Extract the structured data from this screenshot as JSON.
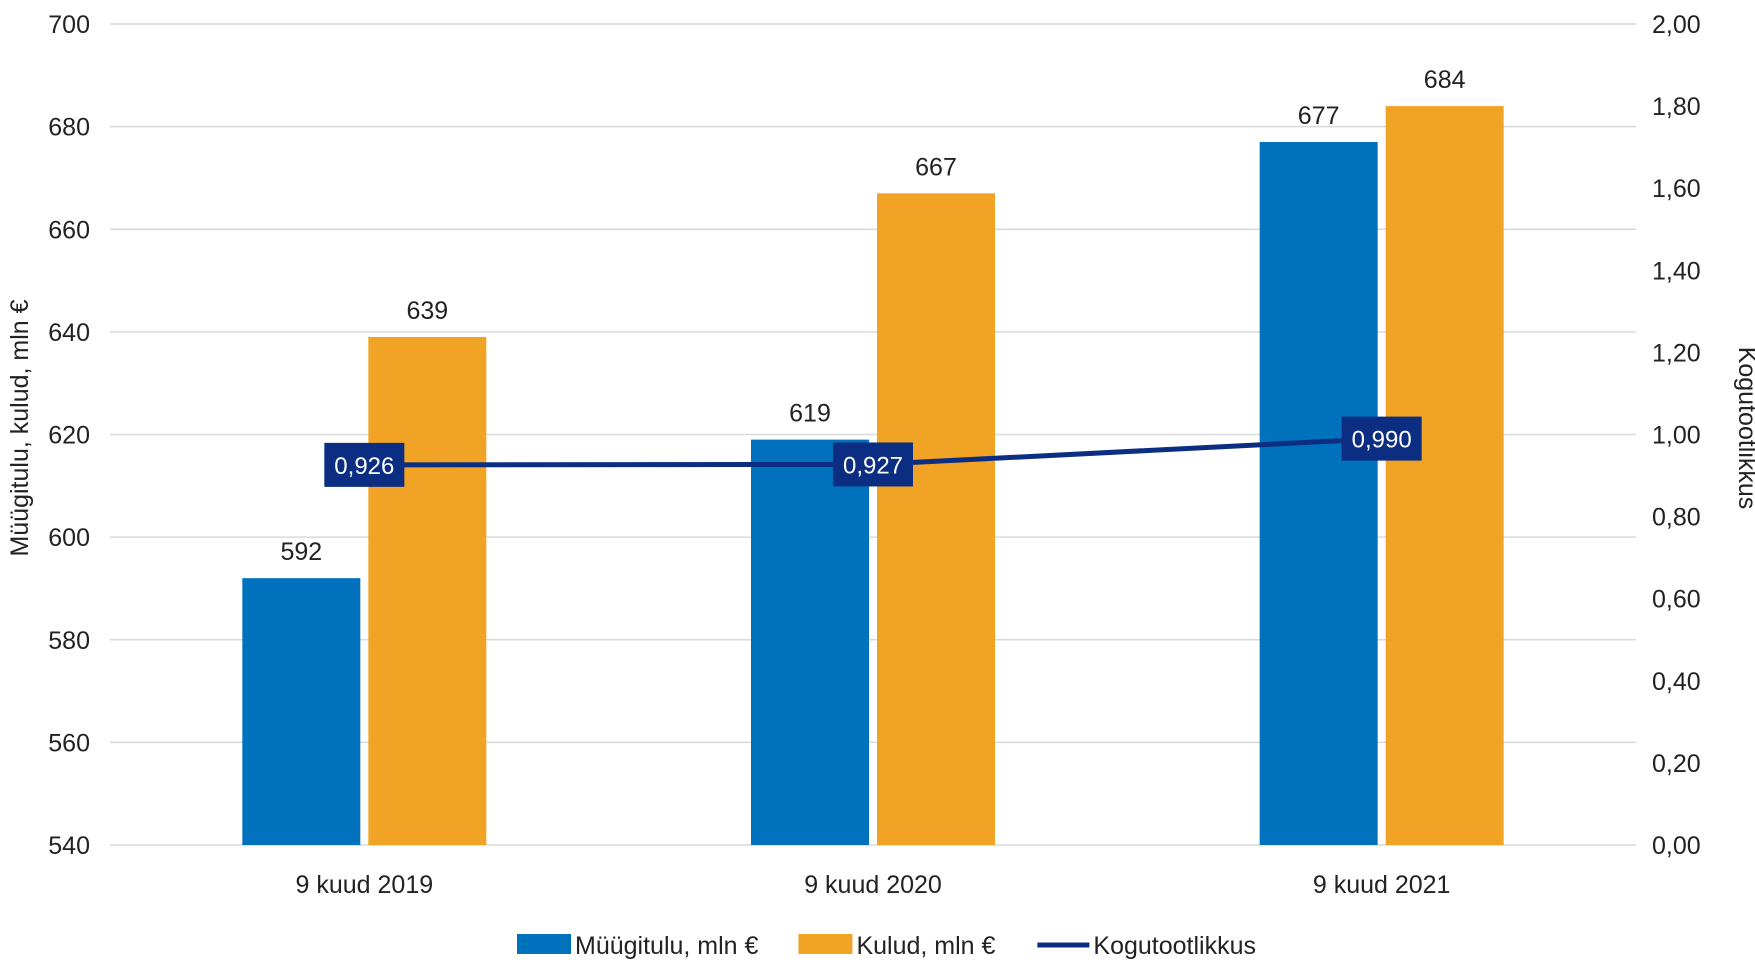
{
  "chart_data": {
    "type": "bar",
    "categories": [
      "9 kuud 2019",
      "9 kuud 2020",
      "9 kuud 2021"
    ],
    "series": [
      {
        "name": "Müügitulu, mln €",
        "type": "bar",
        "axis": "left",
        "values": [
          592,
          619,
          677
        ],
        "labels": [
          "592",
          "619",
          "677"
        ],
        "color": "#0071BC"
      },
      {
        "name": "Kulud, mln €",
        "type": "bar",
        "axis": "left",
        "values": [
          639,
          667,
          684
        ],
        "labels": [
          "639",
          "667",
          "684"
        ],
        "color": "#F0A324"
      },
      {
        "name": "Kogutootlikkus",
        "type": "line",
        "axis": "right",
        "values": [
          0.926,
          0.927,
          0.99
        ],
        "labels": [
          "0,926",
          "0,927",
          "0,990"
        ],
        "color": "#0B2E82"
      }
    ],
    "y_left": {
      "label": "Müügitulu, kulud, mln €",
      "min": 540,
      "max": 700,
      "step": 20,
      "ticks": [
        "540",
        "560",
        "580",
        "600",
        "620",
        "640",
        "660",
        "680",
        "700"
      ]
    },
    "y_right": {
      "label": "Kogutootlikkus",
      "min": 0,
      "max": 2,
      "step": 0.2,
      "ticks": [
        "0,00",
        "0,20",
        "0,40",
        "0,60",
        "0,80",
        "1,00",
        "1,20",
        "1,40",
        "1,60",
        "1,80",
        "2,00"
      ]
    },
    "grid": true,
    "legend_position": "bottom",
    "colors": {
      "gridline": "#D9D9D9",
      "label_box": "#0B2E82"
    }
  }
}
